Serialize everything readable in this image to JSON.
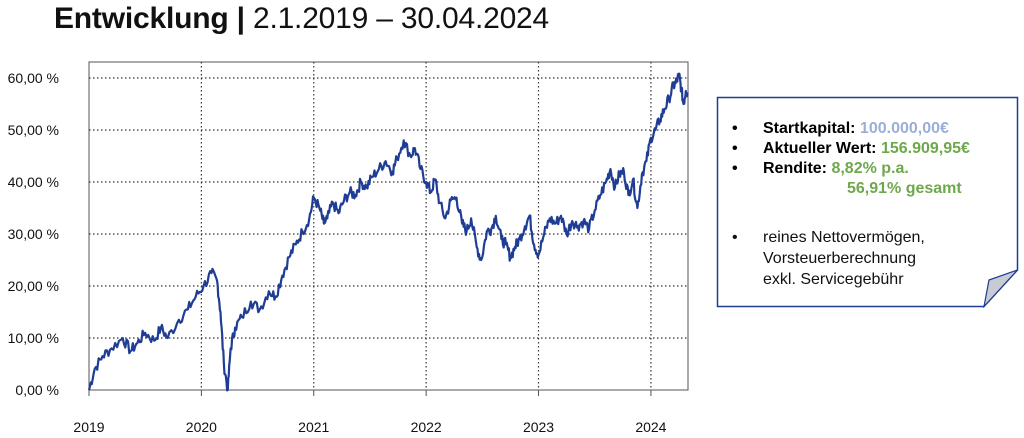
{
  "title": {
    "bold": "Entwicklung |",
    "normal": "2.1.2019 – 30.04.2024"
  },
  "note": {
    "items": [
      {
        "label": "Startkapital:",
        "value": "100.000,00€"
      },
      {
        "label": "Aktueller Wert:",
        "value": "156.909,95€"
      },
      {
        "label": "Rendite:",
        "value": "8,82% p.a.",
        "value2": "56,91% gesamt"
      }
    ],
    "info_lines": [
      "reines Nettovermögen,",
      "Vorsteuerberechnung",
      "exkl. Servicegebühr"
    ]
  },
  "colors": {
    "line": "#1f3d94",
    "note_border": "#1f3d94",
    "blue_value": "#9aaed8",
    "green_value": "#6fa84c"
  },
  "chart_data": {
    "type": "line",
    "title": "",
    "xlabel": "",
    "ylabel": "",
    "ylim": [
      0,
      65
    ],
    "y_ticks": [
      0,
      10,
      20,
      30,
      40,
      50,
      60
    ],
    "y_tick_labels": [
      "0,00 %",
      "10,00 %",
      "20,00 %",
      "30,00 %",
      "40,00 %",
      "50,00 %",
      "60,00 %"
    ],
    "x_ticks": [
      2019,
      2020,
      2021,
      2022,
      2023,
      2024
    ],
    "x_tick_labels": [
      "2019",
      "2020",
      "2021",
      "2022",
      "2023",
      "2024"
    ],
    "xlim": [
      2019.0,
      2024.33
    ],
    "grid": true,
    "series": [
      {
        "x": [
          2019.0,
          2019.05,
          2019.12,
          2019.2,
          2019.3,
          2019.37,
          2019.43,
          2019.5,
          2019.58,
          2019.64,
          2019.7,
          2019.8,
          2019.88,
          2019.95,
          2020.02,
          2020.09,
          2020.14,
          2020.17,
          2020.2,
          2020.235,
          2020.26,
          2020.3,
          2020.36,
          2020.44,
          2020.52,
          2020.6,
          2020.66,
          2020.72,
          2020.78,
          2020.84,
          2020.9,
          2020.96,
          2021.0,
          2021.05,
          2021.09,
          2021.12,
          2021.17,
          2021.22,
          2021.27,
          2021.32,
          2021.37,
          2021.42,
          2021.47,
          2021.52,
          2021.58,
          2021.64,
          2021.7,
          2021.74,
          2021.8,
          2021.86,
          2021.9,
          2021.95,
          2022.0,
          2022.04,
          2022.08,
          2022.12,
          2022.17,
          2022.22,
          2022.27,
          2022.32,
          2022.36,
          2022.4,
          2022.45,
          2022.49,
          2022.54,
          2022.58,
          2022.62,
          2022.67,
          2022.71,
          2022.75,
          2022.79,
          2022.83,
          2022.88,
          2022.92,
          2022.96,
          2023.0,
          2023.05,
          2023.1,
          2023.15,
          2023.2,
          2023.25,
          2023.3,
          2023.35,
          2023.4,
          2023.45,
          2023.5,
          2023.55,
          2023.6,
          2023.64,
          2023.68,
          2023.72,
          2023.76,
          2023.8,
          2023.84,
          2023.88,
          2023.92,
          2023.96,
          2024.0,
          2024.04,
          2024.08,
          2024.12,
          2024.16,
          2024.2,
          2024.22,
          2024.25,
          2024.27,
          2024.29,
          2024.31,
          2024.33
        ],
        "values": [
          0.0,
          4.0,
          6.5,
          8.0,
          10.0,
          7.5,
          9.0,
          11.0,
          9.5,
          12.0,
          10.0,
          13.5,
          15.5,
          18.0,
          20.0,
          22.5,
          21.0,
          15.0,
          5.0,
          0.0,
          8.0,
          12.0,
          14.0,
          17.0,
          15.5,
          19.0,
          18.0,
          22.0,
          25.5,
          28.0,
          30.5,
          33.0,
          37.0,
          35.0,
          32.0,
          33.0,
          36.0,
          34.0,
          36.5,
          38.0,
          37.5,
          40.0,
          39.0,
          41.0,
          42.5,
          44.0,
          42.0,
          44.5,
          48.0,
          45.0,
          46.5,
          42.5,
          40.0,
          38.0,
          40.5,
          36.0,
          33.0,
          36.5,
          37.0,
          32.0,
          30.5,
          33.0,
          27.5,
          25.0,
          30.5,
          31.0,
          33.5,
          29.0,
          28.0,
          25.5,
          27.5,
          29.0,
          31.5,
          33.5,
          28.0,
          26.0,
          30.0,
          33.0,
          32.0,
          33.5,
          30.0,
          32.5,
          31.5,
          32.5,
          31.0,
          34.5,
          37.5,
          40.0,
          42.5,
          39.0,
          41.5,
          42.0,
          37.5,
          40.5,
          35.0,
          41.5,
          44.0,
          48.5,
          50.0,
          52.0,
          54.0,
          56.0,
          58.5,
          59.0,
          60.5,
          58.0,
          55.0,
          57.5,
          57.0
        ]
      }
    ]
  }
}
